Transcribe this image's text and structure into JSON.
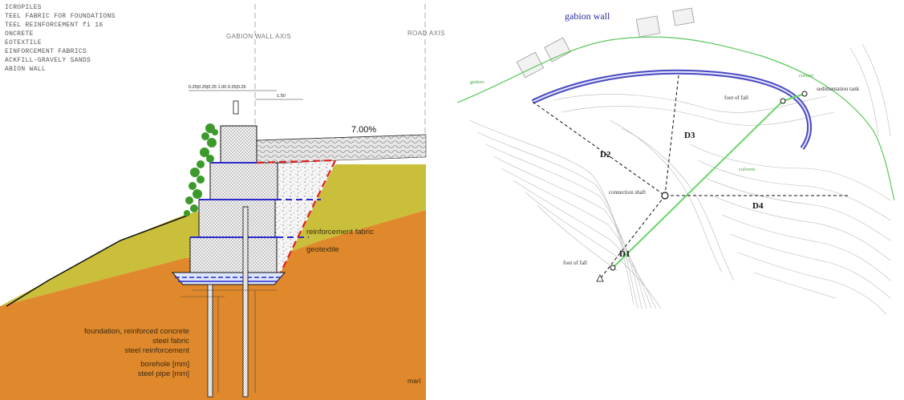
{
  "section": {
    "legend": [
      "ICROPILES",
      "TEEL FABRIC FOR FOUNDATIONS",
      "TEEL REINFORCEMENT fi 16",
      "ONCRETE",
      "EOTEXTILE",
      "EINFORCEMENT FABRICS",
      "ACKFILL-GRAVELY SANDS",
      "ABION WALL"
    ],
    "gabion_axis": "GABION WALL AXIS",
    "road_axis": "ROAD AXIS",
    "slope": "7.00%",
    "dim_top": "0.25|0.25|0.25   1.00   0.25|0.25",
    "dim_right": "1.50",
    "reinforcement_fabric": "reinforcement fabric",
    "geotextile": "geotextile",
    "foundation_lines": [
      "foundation, reinforced concrete",
      "steel fabric",
      "steel reinforcement"
    ],
    "pile_lines": [
      "borehole [mm]",
      "steel pipe [mm]"
    ],
    "marl": "marl"
  },
  "plan": {
    "title": "gabion wall",
    "gutters": "gutters",
    "culvert_top": "culvert",
    "culverts": "culverts",
    "foot_of_fall_top": "foot of fall",
    "foot_of_fall_bottom": "foot of fall",
    "sedimentation_tank": "sedimentation tank",
    "connection_shaft": "connection shaft",
    "d1": "D1",
    "d2": "D2",
    "d3": "D3",
    "d4": "D4"
  },
  "colors": {
    "orange_soil": "#e0892c",
    "olive_soil": "#c9bf3a",
    "gabion_blue": "#4a4ac0",
    "fabric_red": "#e02020",
    "culvert_green": "#6ad46a",
    "vegetation": "#3c9a2c"
  }
}
